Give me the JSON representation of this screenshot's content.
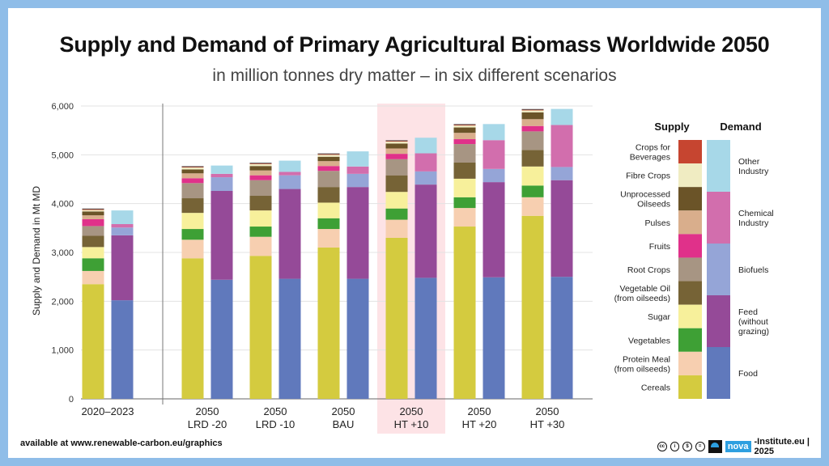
{
  "title": "Supply and Demand of Primary Agricultural Biomass Worldwide 2050",
  "subtitle": "in million tonnes dry matter – in six different scenarios",
  "footer": {
    "source": "available at www.renewable-carbon.eu/graphics",
    "credit": "-Institute.eu | 2025",
    "logo_word": "nova"
  },
  "chart_data": {
    "type": "bar",
    "stacked": true,
    "ylabel": "Supply and Demand in Mt MD",
    "ylim": [
      0,
      6000
    ],
    "yticks": [
      "0",
      "1,000",
      "2,000",
      "3,000",
      "4,000",
      "5,000",
      "6,000"
    ],
    "grid": true,
    "legend_position": "right",
    "highlighted_category": "2050 HT +10",
    "categories": [
      {
        "line1": "2020–2023",
        "line2": ""
      },
      {
        "line1": "2050",
        "line2": "LRD -20"
      },
      {
        "line1": "2050",
        "line2": "LRD -10"
      },
      {
        "line1": "2050",
        "line2": "BAU"
      },
      {
        "line1": "2050",
        "line2": "HT +10"
      },
      {
        "line1": "2050",
        "line2": "HT +20"
      },
      {
        "line1": "2050",
        "line2": "HT +30"
      }
    ],
    "supply_header": "Supply",
    "demand_header": "Demand",
    "supply_series": [
      {
        "name": "Cereals",
        "color": "#d4cb3f",
        "values": [
          2350,
          2880,
          2930,
          3100,
          3300,
          3530,
          3750
        ]
      },
      {
        "name": "Protein Meal (from oilseeds)",
        "color": "#f7cfb0",
        "values": [
          270,
          380,
          390,
          380,
          370,
          380,
          380
        ]
      },
      {
        "name": "Vegetables",
        "color": "#3ea035",
        "values": [
          260,
          220,
          210,
          220,
          230,
          220,
          240
        ]
      },
      {
        "name": "Sugar",
        "color": "#f7f09b",
        "values": [
          230,
          330,
          330,
          320,
          340,
          380,
          390
        ]
      },
      {
        "name": "Vegetable Oil (from oilseeds)",
        "color": "#766336",
        "values": [
          230,
          300,
          300,
          320,
          340,
          330,
          340
        ]
      },
      {
        "name": "Root Crops",
        "color": "#a79583",
        "values": [
          200,
          310,
          320,
          330,
          330,
          380,
          380
        ]
      },
      {
        "name": "Fruits",
        "color": "#e0318a",
        "values": [
          140,
          100,
          100,
          100,
          110,
          100,
          110
        ]
      },
      {
        "name": "Pulses",
        "color": "#d9ae8c",
        "values": [
          80,
          100,
          100,
          100,
          110,
          130,
          140
        ]
      },
      {
        "name": "Unprocessed Oilseeds",
        "color": "#6b5428",
        "values": [
          80,
          80,
          90,
          90,
          100,
          110,
          140
        ]
      },
      {
        "name": "Fibre Crops",
        "color": "#f0ecc2",
        "values": [
          30,
          40,
          40,
          40,
          40,
          40,
          40
        ]
      },
      {
        "name": "Crops for Beverages",
        "color": "#c64530",
        "values": [
          20,
          20,
          20,
          20,
          20,
          20,
          20
        ]
      }
    ],
    "demand_series": [
      {
        "name": "Food",
        "color": "#6079bc",
        "values": [
          2020,
          2440,
          2460,
          2460,
          2480,
          2490,
          2500
        ]
      },
      {
        "name": "Feed (without grazing)",
        "color": "#954a98",
        "values": [
          1330,
          1820,
          1840,
          1880,
          1910,
          1950,
          1980
        ]
      },
      {
        "name": "Biofuels",
        "color": "#95a5d7",
        "values": [
          160,
          280,
          280,
          270,
          270,
          270,
          270
        ]
      },
      {
        "name": "Chemical Industry",
        "color": "#d26ead",
        "values": [
          70,
          70,
          70,
          150,
          370,
          590,
          860
        ]
      },
      {
        "name": "Other Industry",
        "color": "#a7d8e8",
        "values": [
          280,
          170,
          230,
          310,
          320,
          330,
          330
        ]
      }
    ],
    "legend_supply_labels": [
      [
        "Crops for",
        "Beverages"
      ],
      [
        "Fibre Crops"
      ],
      [
        "Unprocessed",
        "Oilseeds"
      ],
      [
        "Pulses"
      ],
      [
        "Fruits"
      ],
      [
        "Root Crops"
      ],
      [
        "Vegetable Oil",
        "(from oilseeds)"
      ],
      [
        "Sugar"
      ],
      [
        "Vegetables"
      ],
      [
        "Protein Meal",
        "(from oilseeds)"
      ],
      [
        "Cereals"
      ]
    ],
    "legend_demand_labels": [
      [
        "Other",
        "Industry"
      ],
      [
        "Chemical",
        "Industry"
      ],
      [
        "Biofuels"
      ],
      [
        "Feed",
        "(without",
        "grazing)"
      ],
      [
        "Food"
      ]
    ]
  }
}
